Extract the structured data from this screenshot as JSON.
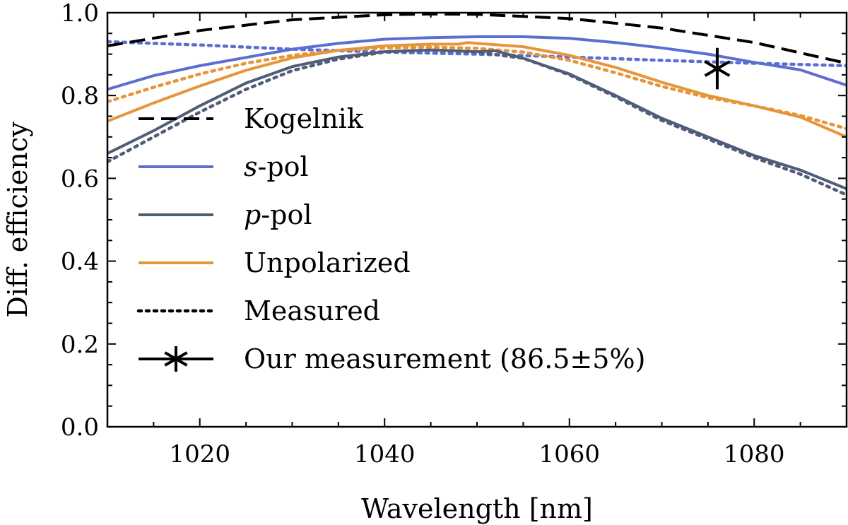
{
  "chart_data": {
    "type": "line",
    "xlabel": "Wavelength [nm]",
    "ylabel": "Diff. efficiency",
    "xlim": [
      1010,
      1090
    ],
    "ylim": [
      0.0,
      1.0
    ],
    "xticks": [
      1020,
      1040,
      1060,
      1080
    ],
    "xtick_labels": [
      "1020",
      "1040",
      "1060",
      "1080"
    ],
    "yticks": [
      0.0,
      0.2,
      0.4,
      0.6,
      0.8,
      1.0
    ],
    "ytick_labels": [
      "0.0",
      "0.2",
      "0.4",
      "0.6",
      "0.8",
      "1.0"
    ],
    "grid": false,
    "legend_position": "left",
    "legend": [
      {
        "key": "kogelnik",
        "pre": "Kogelnik",
        "italic": "",
        "post": ""
      },
      {
        "key": "spol",
        "pre": "",
        "italic": "s",
        "post": "-pol"
      },
      {
        "key": "ppol",
        "pre": "",
        "italic": "p",
        "post": "-pol"
      },
      {
        "key": "unpol",
        "pre": "Unpolarized",
        "italic": "",
        "post": ""
      },
      {
        "key": "measured",
        "pre": "Measured",
        "italic": "",
        "post": ""
      },
      {
        "key": "ours",
        "pre": "Our measurement (86.5±5%)",
        "italic": "",
        "post": ""
      }
    ],
    "series": [
      {
        "key": "kogelnik",
        "style": "dashed",
        "color": "#000000",
        "x": [
          1010,
          1020,
          1030,
          1040,
          1045,
          1050,
          1060,
          1070,
          1080,
          1090
        ],
        "y": [
          0.92,
          0.957,
          0.983,
          0.995,
          0.997,
          0.996,
          0.986,
          0.963,
          0.928,
          0.878
        ]
      },
      {
        "key": "spol",
        "style": "solid",
        "color": "#5a6fd0",
        "x": [
          1010,
          1015,
          1020,
          1025,
          1030,
          1035,
          1040,
          1045,
          1050,
          1055,
          1060,
          1065,
          1070,
          1075,
          1080,
          1085,
          1090
        ],
        "y": [
          0.815,
          0.848,
          0.872,
          0.892,
          0.912,
          0.926,
          0.936,
          0.94,
          0.942,
          0.942,
          0.938,
          0.928,
          0.915,
          0.9,
          0.88,
          0.862,
          0.825
        ]
      },
      {
        "key": "spol_measured",
        "style": "dotted",
        "color": "#5a6fd0",
        "x": [
          1010,
          1020,
          1030,
          1040,
          1050,
          1060,
          1070,
          1080,
          1090
        ],
        "y": [
          0.93,
          0.922,
          0.912,
          0.905,
          0.9,
          0.893,
          0.885,
          0.878,
          0.872
        ]
      },
      {
        "key": "ppol",
        "style": "solid",
        "color": "#4f5d78",
        "x": [
          1010,
          1015,
          1020,
          1025,
          1030,
          1035,
          1040,
          1045,
          1050,
          1052,
          1055,
          1060,
          1065,
          1070,
          1075,
          1080,
          1085,
          1090
        ],
        "y": [
          0.66,
          0.715,
          0.775,
          0.83,
          0.87,
          0.893,
          0.906,
          0.91,
          0.906,
          0.908,
          0.89,
          0.852,
          0.8,
          0.745,
          0.7,
          0.655,
          0.62,
          0.575
        ]
      },
      {
        "key": "ppol_measured",
        "style": "dotted",
        "color": "#4f5d78",
        "x": [
          1010,
          1015,
          1020,
          1025,
          1030,
          1035,
          1040,
          1045,
          1050,
          1055,
          1060,
          1065,
          1070,
          1075,
          1080,
          1085,
          1090
        ],
        "y": [
          0.64,
          0.7,
          0.76,
          0.815,
          0.86,
          0.888,
          0.905,
          0.91,
          0.905,
          0.89,
          0.85,
          0.797,
          0.74,
          0.695,
          0.65,
          0.61,
          0.56
        ]
      },
      {
        "key": "unpol",
        "style": "solid",
        "color": "#e6953a",
        "x": [
          1010,
          1015,
          1020,
          1025,
          1030,
          1035,
          1040,
          1045,
          1048,
          1049,
          1050,
          1055,
          1060,
          1065,
          1070,
          1075,
          1080,
          1085,
          1090
        ],
        "y": [
          0.738,
          0.782,
          0.823,
          0.861,
          0.891,
          0.909,
          0.92,
          0.924,
          0.924,
          0.928,
          0.926,
          0.918,
          0.897,
          0.868,
          0.832,
          0.8,
          0.775,
          0.748,
          0.7
        ]
      },
      {
        "key": "unpol_measured",
        "style": "dotted",
        "color": "#e6953a",
        "x": [
          1010,
          1015,
          1020,
          1025,
          1030,
          1035,
          1040,
          1045,
          1050,
          1055,
          1060,
          1065,
          1070,
          1075,
          1080,
          1085,
          1090
        ],
        "y": [
          0.785,
          0.82,
          0.852,
          0.878,
          0.897,
          0.909,
          0.915,
          0.917,
          0.914,
          0.905,
          0.885,
          0.855,
          0.822,
          0.795,
          0.775,
          0.752,
          0.72
        ]
      }
    ],
    "measurement": {
      "x": 1076,
      "y": 0.865,
      "yerr": 0.05,
      "color": "#000000"
    }
  }
}
